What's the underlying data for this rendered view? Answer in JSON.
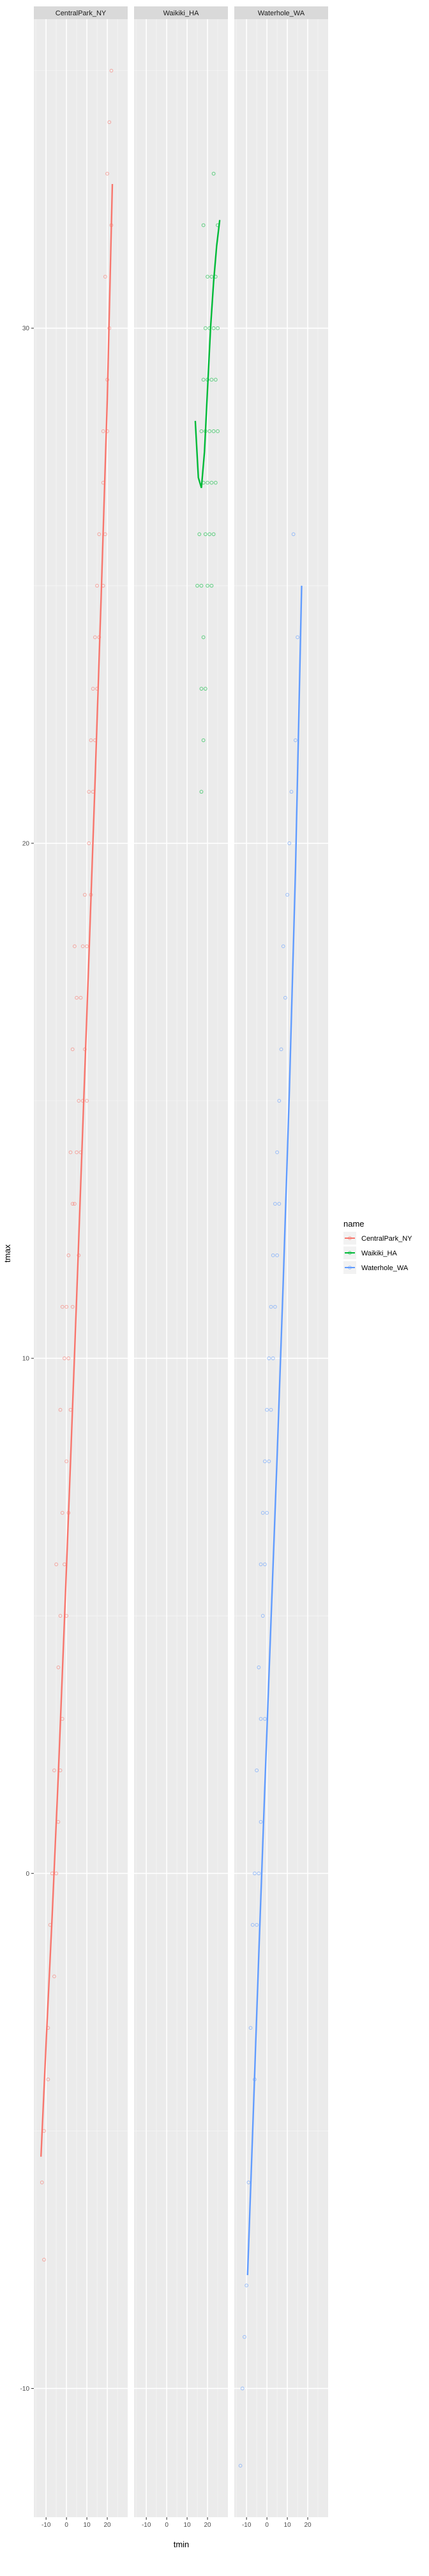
{
  "chart_data": {
    "type": "scatter",
    "title": "",
    "xlabel": "tmin",
    "ylabel": "tmax",
    "xlim": [
      -16,
      30
    ],
    "ylim": [
      -12.5,
      36
    ],
    "x_ticks": [
      -10,
      0,
      10,
      20
    ],
    "y_ticks": [
      -10,
      0,
      10,
      20,
      30
    ],
    "x_tick_labels": [
      "-10",
      "0",
      "10",
      "20"
    ],
    "y_tick_labels": [
      "-10",
      "0",
      "10",
      "20",
      "30"
    ],
    "grid": true,
    "legend": {
      "title": "name",
      "position": "right"
    },
    "facets": [
      {
        "name": "CentralPark_NY",
        "color": "#F8766D",
        "smooth_x": [
          -12.5,
          -10,
          -7,
          -4,
          -1,
          2,
          5,
          8,
          11,
          14,
          17,
          20,
          22.5
        ],
        "smooth_y": [
          -5.5,
          -3.3,
          -0.8,
          1.9,
          4.9,
          8.0,
          11.2,
          14.5,
          17.8,
          21.2,
          24.8,
          28.6,
          32.8
        ],
        "points": [
          [
            22,
            35
          ],
          [
            21,
            34
          ],
          [
            20,
            33
          ],
          [
            22,
            32
          ],
          [
            19,
            31
          ],
          [
            21,
            30
          ],
          [
            20,
            29
          ],
          [
            18,
            28
          ],
          [
            20,
            28
          ],
          [
            18,
            27
          ],
          [
            16,
            26
          ],
          [
            19,
            26
          ],
          [
            15,
            25
          ],
          [
            18,
            25
          ],
          [
            14,
            24
          ],
          [
            16,
            24
          ],
          [
            13,
            23
          ],
          [
            15,
            23
          ],
          [
            12,
            22
          ],
          [
            14,
            22
          ],
          [
            11,
            21
          ],
          [
            13,
            21
          ],
          [
            11,
            20
          ],
          [
            9,
            19
          ],
          [
            12,
            19
          ],
          [
            4,
            18
          ],
          [
            8,
            18
          ],
          [
            10,
            18
          ],
          [
            5,
            17
          ],
          [
            7,
            17
          ],
          [
            9,
            16
          ],
          [
            3,
            16
          ],
          [
            6,
            15
          ],
          [
            8,
            15
          ],
          [
            10,
            15
          ],
          [
            2,
            14
          ],
          [
            5,
            14
          ],
          [
            7,
            14
          ],
          [
            3,
            13
          ],
          [
            4,
            13
          ],
          [
            6,
            12
          ],
          [
            1,
            12
          ],
          [
            -2,
            11
          ],
          [
            0,
            11
          ],
          [
            3,
            11
          ],
          [
            -1,
            10
          ],
          [
            1,
            10
          ],
          [
            2,
            9
          ],
          [
            -3,
            9
          ],
          [
            0,
            8
          ],
          [
            -2,
            7
          ],
          [
            1,
            7
          ],
          [
            -5,
            6
          ],
          [
            -1,
            6
          ],
          [
            -3,
            5
          ],
          [
            0,
            5
          ],
          [
            -4,
            4
          ],
          [
            -2,
            3
          ],
          [
            -6,
            2
          ],
          [
            -3,
            2
          ],
          [
            -4,
            1
          ],
          [
            -7,
            0
          ],
          [
            -5,
            0
          ],
          [
            -8,
            -1
          ],
          [
            -6,
            -2
          ],
          [
            -9,
            -3
          ],
          [
            -11,
            -5
          ],
          [
            -12,
            -6
          ],
          [
            -9,
            -4
          ],
          [
            -11,
            -7.5
          ]
        ]
      },
      {
        "name": "Waikiki_HA",
        "color": "#00BA38",
        "smooth_x": [
          14,
          15.5,
          17,
          18.5,
          20,
          21.5,
          23,
          24.5,
          26
        ],
        "smooth_y": [
          28.2,
          27.1,
          26.9,
          27.6,
          28.8,
          30.0,
          30.9,
          31.6,
          32.1
        ],
        "points": [
          [
            23,
            33
          ],
          [
            25,
            32
          ],
          [
            18,
            32
          ],
          [
            22,
            31
          ],
          [
            24,
            31
          ],
          [
            20,
            31
          ],
          [
            19,
            30
          ],
          [
            21,
            30
          ],
          [
            23,
            30
          ],
          [
            25,
            30
          ],
          [
            18,
            29
          ],
          [
            20,
            29
          ],
          [
            22,
            29
          ],
          [
            24,
            29
          ],
          [
            17,
            28
          ],
          [
            19,
            28
          ],
          [
            21,
            28
          ],
          [
            23,
            28
          ],
          [
            25,
            28
          ],
          [
            18,
            27
          ],
          [
            20,
            27
          ],
          [
            22,
            27
          ],
          [
            24,
            27
          ],
          [
            16,
            26
          ],
          [
            19,
            26
          ],
          [
            21,
            26
          ],
          [
            23,
            26
          ],
          [
            15,
            25
          ],
          [
            17,
            25
          ],
          [
            20,
            25
          ],
          [
            22,
            25
          ],
          [
            18,
            24
          ],
          [
            19,
            23
          ],
          [
            17,
            23
          ],
          [
            18,
            22
          ],
          [
            17,
            21
          ]
        ]
      },
      {
        "name": "Waterhole_WA",
        "color": "#619CFF",
        "smooth_x": [
          -9.5,
          -7,
          -4,
          -1,
          2,
          5,
          8,
          11,
          14,
          17
        ],
        "smooth_y": [
          -7.8,
          -5.0,
          -1.6,
          1.7,
          4.9,
          8.1,
          11.5,
          15.2,
          19.5,
          25.0
        ],
        "points": [
          [
            13,
            26
          ],
          [
            15,
            24
          ],
          [
            14,
            22
          ],
          [
            12,
            21
          ],
          [
            11,
            20
          ],
          [
            10,
            19
          ],
          [
            8,
            18
          ],
          [
            9,
            17
          ],
          [
            7,
            16
          ],
          [
            6,
            15
          ],
          [
            5,
            14
          ],
          [
            4,
            13
          ],
          [
            6,
            13
          ],
          [
            3,
            12
          ],
          [
            5,
            12
          ],
          [
            2,
            11
          ],
          [
            4,
            11
          ],
          [
            1,
            10
          ],
          [
            3,
            10
          ],
          [
            0,
            9
          ],
          [
            2,
            9
          ],
          [
            -1,
            8
          ],
          [
            1,
            8
          ],
          [
            -2,
            7
          ],
          [
            0,
            7
          ],
          [
            -3,
            6
          ],
          [
            -1,
            6
          ],
          [
            -2,
            5
          ],
          [
            -4,
            4
          ],
          [
            -3,
            3
          ],
          [
            -1,
            3
          ],
          [
            -5,
            2
          ],
          [
            -3,
            1
          ],
          [
            -6,
            0
          ],
          [
            -4,
            0
          ],
          [
            -7,
            -1
          ],
          [
            -5,
            -1
          ],
          [
            -8,
            -3
          ],
          [
            -6,
            -4
          ],
          [
            -9,
            -6
          ],
          [
            -10,
            -8
          ],
          [
            -11,
            -9
          ],
          [
            -12,
            -10
          ],
          [
            -13,
            -11.5
          ]
        ]
      }
    ]
  }
}
